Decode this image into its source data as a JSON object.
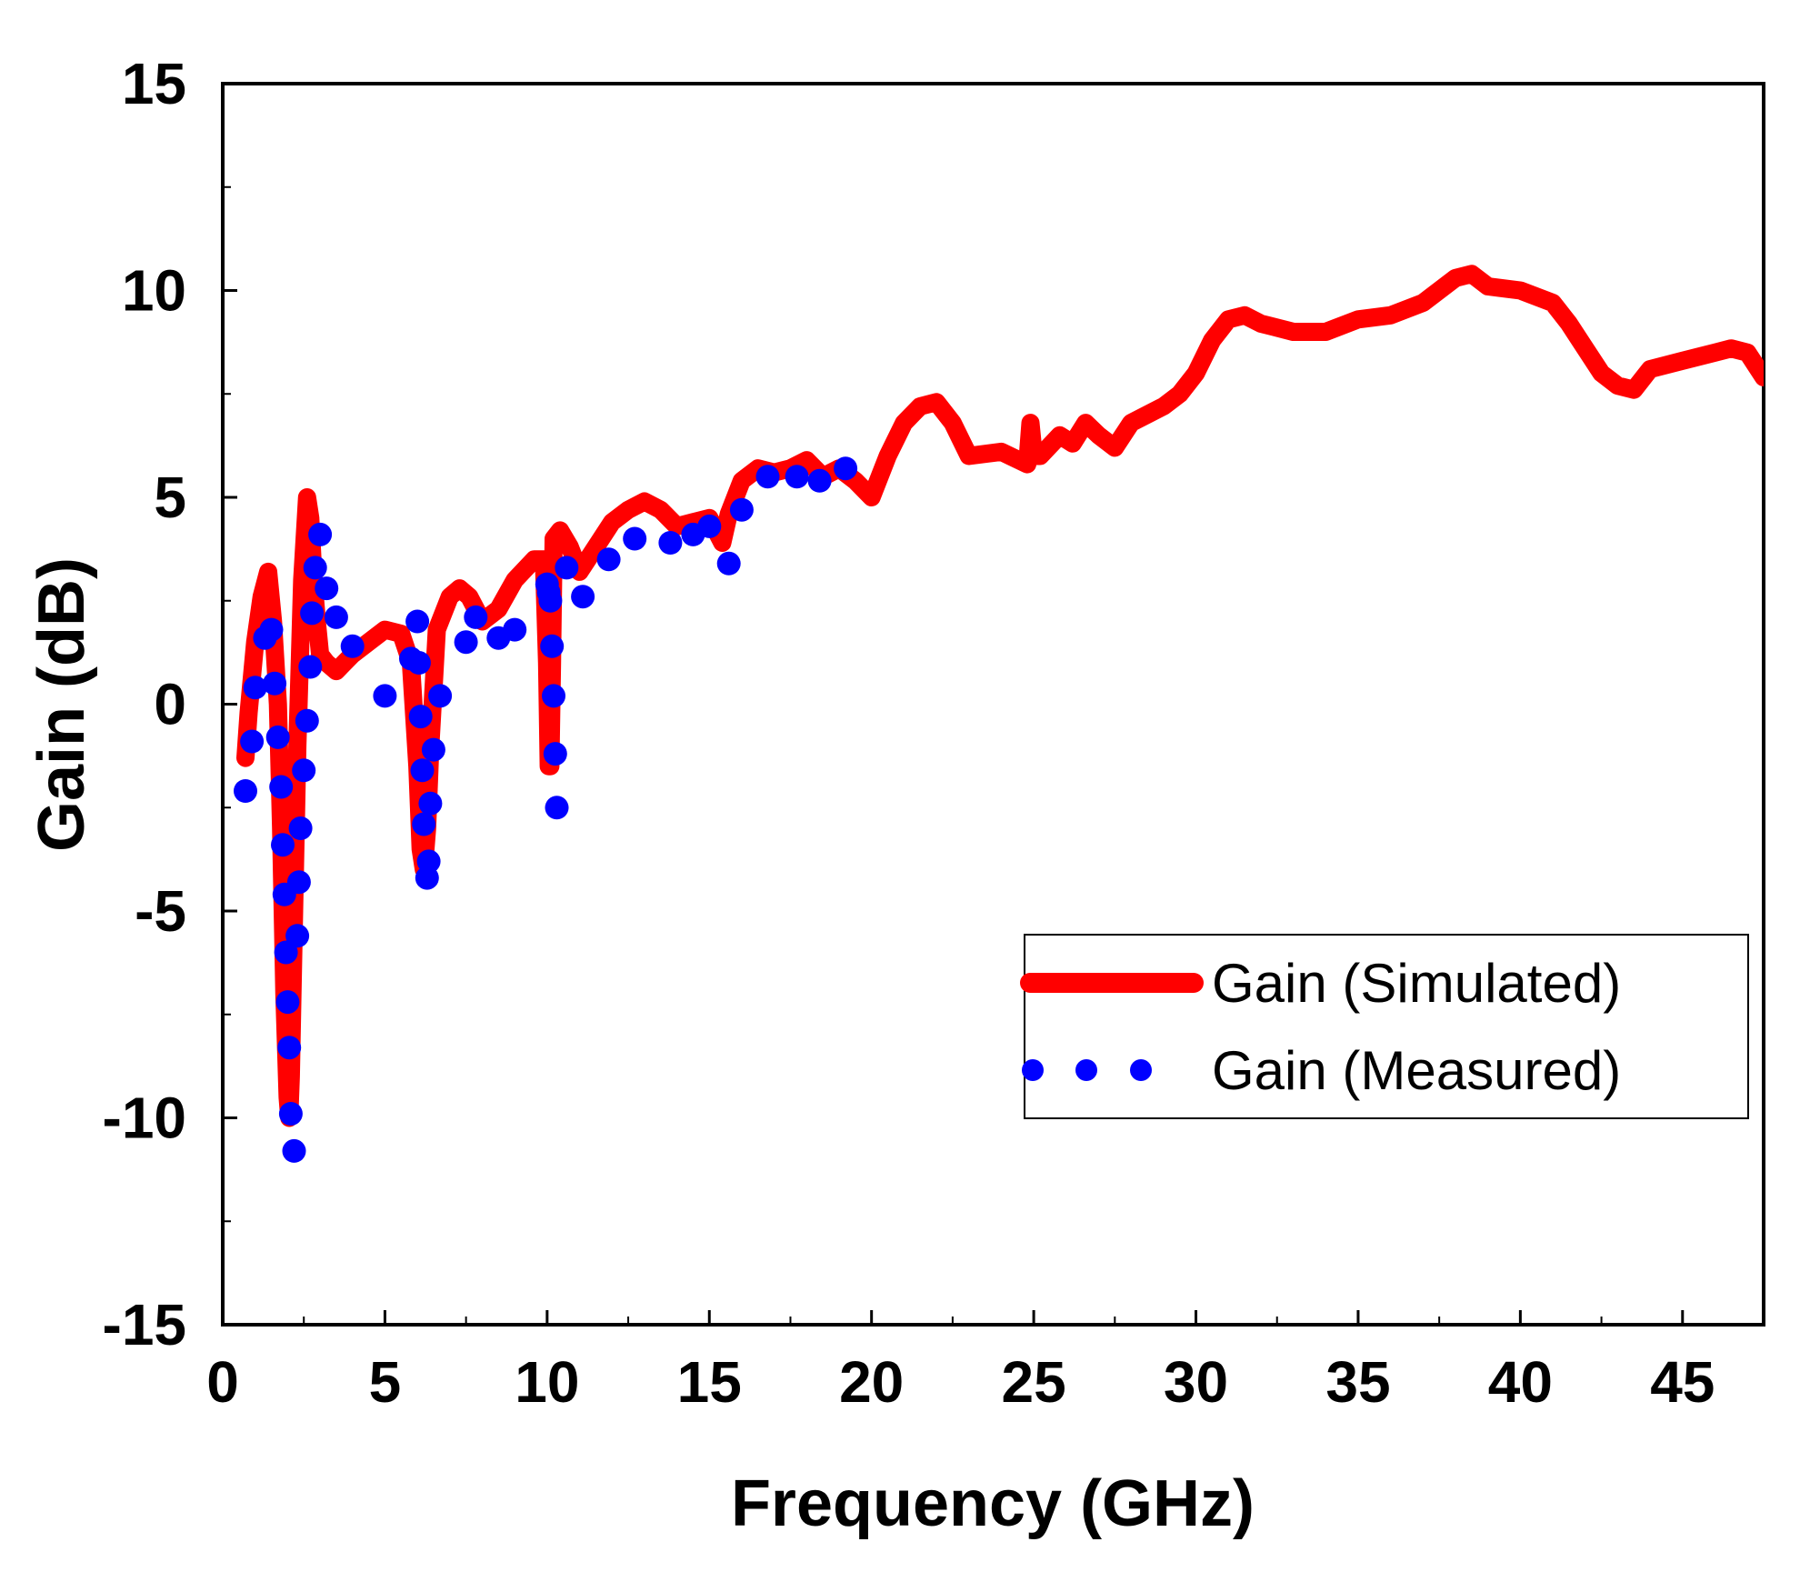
{
  "chart_data": {
    "type": "line",
    "title": "",
    "xlabel": "Frequency (GHz)",
    "ylabel": "Gain (dB)",
    "xlim": [
      0,
      47.5
    ],
    "ylim": [
      -15,
      15
    ],
    "xticks": [
      "0",
      "5",
      "10",
      "15",
      "20",
      "25",
      "30",
      "35",
      "40",
      "45"
    ],
    "yticks": [
      "-15",
      "-10",
      "-5",
      "0",
      "5",
      "10",
      "15"
    ],
    "grid": false,
    "legend_position": "center-right",
    "colors": {
      "simulated": "#ff0000",
      "measured": "#0000ff"
    },
    "series": [
      {
        "name": "Gain (Simulated)",
        "style": "thick-solid",
        "x": [
          0.7,
          0.8,
          1.0,
          1.2,
          1.4,
          1.55,
          1.7,
          1.8,
          1.9,
          2.0,
          2.05,
          2.1,
          2.2,
          2.3,
          2.45,
          2.6,
          2.7,
          2.8,
          2.9,
          3.0,
          3.2,
          3.5,
          4.0,
          4.5,
          5.0,
          5.5,
          5.8,
          6.0,
          6.1,
          6.2,
          6.3,
          6.4,
          6.6,
          7.0,
          7.3,
          7.6,
          8.0,
          8.5,
          9.0,
          9.6,
          9.9,
          10.0,
          10.05,
          10.1,
          10.15,
          10.2,
          10.4,
          10.7,
          11.0,
          11.5,
          12.0,
          12.5,
          13.0,
          13.5,
          14.0,
          14.5,
          15.0,
          15.4,
          15.6,
          16.0,
          16.5,
          17.0,
          17.5,
          18.0,
          18.5,
          19.0,
          19.5,
          20.0,
          20.5,
          21.0,
          21.5,
          22.0,
          22.5,
          23.0,
          24.0,
          24.8,
          24.9,
          25.0,
          25.2,
          25.8,
          26.2,
          26.6,
          27.0,
          27.5,
          28.0,
          29.0,
          29.5,
          30.0,
          30.5,
          31.0,
          31.5,
          32.0,
          33.0,
          34.0,
          35.0,
          36.0,
          37.0,
          38.0,
          38.5,
          39.0,
          40.0,
          41.0,
          41.5,
          42.0,
          42.5,
          43.0,
          43.5,
          44.0,
          45.0,
          46.0,
          46.5,
          47.0,
          47.5
        ],
        "y": [
          -1.3,
          -0.2,
          1.5,
          2.6,
          3.2,
          2.0,
          0.0,
          -3.0,
          -7.0,
          -9.5,
          -10.0,
          -9.0,
          -5.0,
          -1.0,
          3.0,
          5.0,
          4.5,
          3.0,
          2.0,
          1.2,
          1.0,
          0.8,
          1.2,
          1.5,
          1.8,
          1.7,
          1.0,
          -1.5,
          -3.5,
          -4.0,
          -3.0,
          -1.0,
          1.8,
          2.6,
          2.8,
          2.6,
          2.0,
          2.3,
          3.0,
          3.5,
          3.5,
          1.0,
          -1.5,
          -1.5,
          1.0,
          4.0,
          4.2,
          3.8,
          3.2,
          3.8,
          4.4,
          4.7,
          4.9,
          4.7,
          4.3,
          4.4,
          4.5,
          3.9,
          4.6,
          5.4,
          5.7,
          5.6,
          5.7,
          5.9,
          5.5,
          5.7,
          5.4,
          5.0,
          6.0,
          6.8,
          7.2,
          7.3,
          6.8,
          6.0,
          6.1,
          5.8,
          6.8,
          6.0,
          6.0,
          6.5,
          6.3,
          6.8,
          6.5,
          6.2,
          6.8,
          7.2,
          7.5,
          8.0,
          8.8,
          9.3,
          9.4,
          9.2,
          9.0,
          9.0,
          9.3,
          9.4,
          9.7,
          10.3,
          10.4,
          10.1,
          10.0,
          9.7,
          9.2,
          8.6,
          8.0,
          7.7,
          7.6,
          8.1,
          8.3,
          8.5,
          8.6,
          8.5,
          7.9
        ]
      },
      {
        "name": "Gain (Measured)",
        "style": "dots",
        "x": [
          0.7,
          0.9,
          1.0,
          1.3,
          1.5,
          1.6,
          1.7,
          1.8,
          1.85,
          1.9,
          1.95,
          2.0,
          2.05,
          2.1,
          2.2,
          2.3,
          2.35,
          2.4,
          2.5,
          2.6,
          2.7,
          2.75,
          2.85,
          3.0,
          3.2,
          3.5,
          4.0,
          5.0,
          5.8,
          6.0,
          6.05,
          6.1,
          6.15,
          6.2,
          6.3,
          6.35,
          6.4,
          6.5,
          6.7,
          7.5,
          7.8,
          8.5,
          9.0,
          10.0,
          10.05,
          10.1,
          10.15,
          10.2,
          10.25,
          10.3,
          10.6,
          11.1,
          11.9,
          12.7,
          13.8,
          14.5,
          15.0,
          15.6,
          16.0,
          16.8,
          17.7,
          18.4,
          19.2
        ],
        "y": [
          -2.1,
          -0.9,
          0.4,
          1.6,
          1.8,
          0.5,
          -0.8,
          -2.0,
          -3.4,
          -4.6,
          -6.0,
          -7.2,
          -8.3,
          -9.9,
          -10.8,
          -5.6,
          -4.3,
          -3.0,
          -1.6,
          -0.4,
          0.9,
          2.2,
          3.3,
          4.1,
          2.8,
          2.1,
          1.4,
          0.2,
          1.1,
          2.0,
          1.0,
          -0.3,
          -1.6,
          -2.9,
          -4.2,
          -3.8,
          -2.4,
          -1.1,
          0.2,
          1.5,
          2.1,
          1.6,
          1.8,
          2.9,
          2.7,
          2.5,
          1.4,
          0.2,
          -1.2,
          -2.5,
          3.3,
          2.6,
          3.5,
          4.0,
          3.9,
          4.1,
          4.3,
          3.4,
          4.7,
          5.5,
          5.5,
          5.4,
          5.7
        ]
      }
    ]
  }
}
